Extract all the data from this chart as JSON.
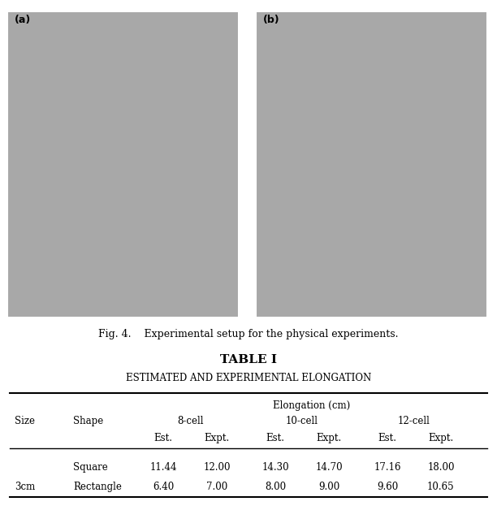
{
  "fig_caption": "Fig. 4.    Experimental setup for the physical experiments.",
  "table_title": "TABLE I",
  "table_subtitle": "Estimated and Experimental Elongation",
  "table_header_span": "Elongation (cm)",
  "rows": [
    [
      "",
      "Square",
      "11.44",
      "12.00",
      "14.30",
      "14.70",
      "17.16",
      "18.00"
    ],
    [
      "3cm",
      "Rectangle",
      "6.40",
      "7.00",
      "8.00",
      "9.00",
      "9.60",
      "10.65"
    ]
  ],
  "bg_color": "#ffffff",
  "text_color": "#000000"
}
